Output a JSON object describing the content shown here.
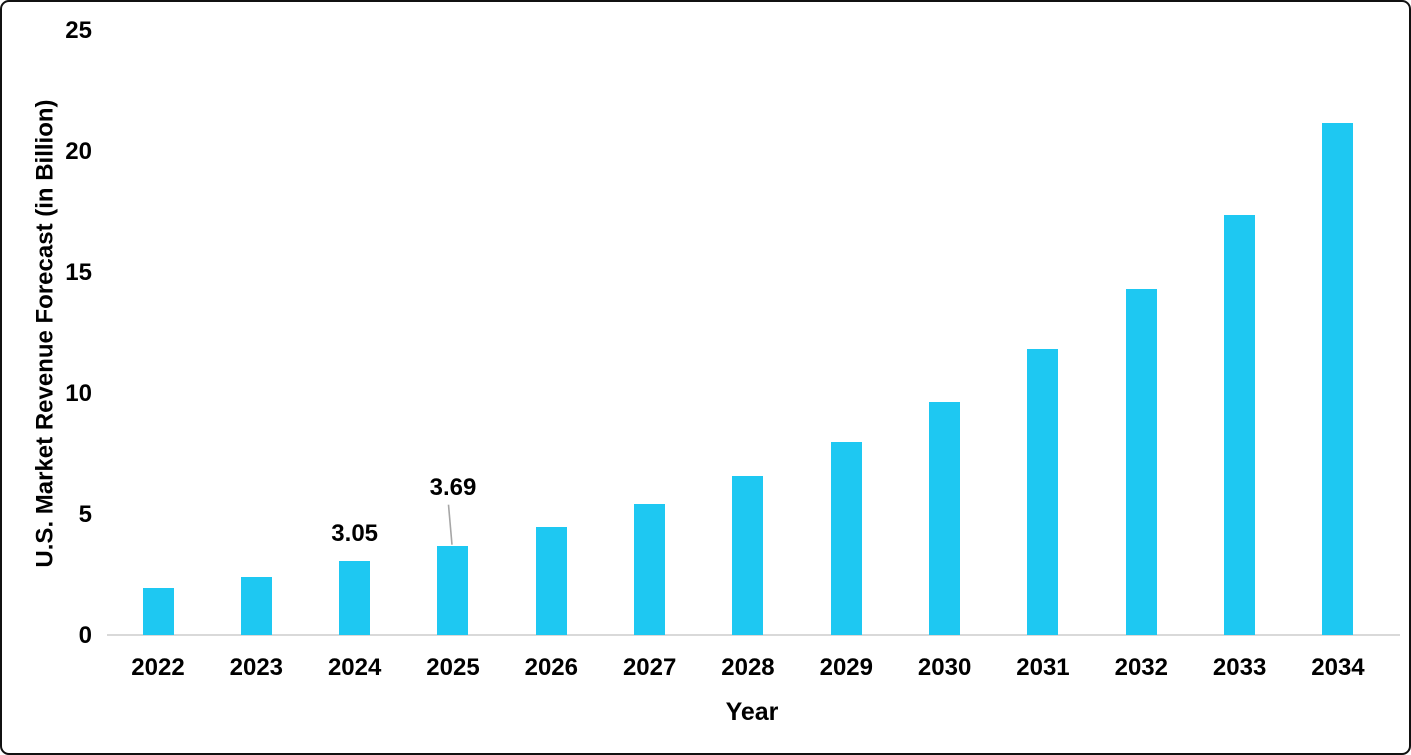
{
  "frame": {
    "background_color": "#ffffff",
    "border_color": "#111111"
  },
  "chart_data": {
    "type": "bar",
    "title": "",
    "xlabel": "Year",
    "ylabel": "U.S. Market Revenue Forecast (in Billion)",
    "categories": [
      "2022",
      "2023",
      "2024",
      "2025",
      "2026",
      "2027",
      "2028",
      "2029",
      "2030",
      "2031",
      "2032",
      "2033",
      "2034"
    ],
    "values": [
      1.93,
      2.41,
      3.05,
      3.69,
      4.46,
      5.41,
      6.57,
      7.99,
      9.64,
      11.8,
      14.3,
      17.35,
      21.15
    ],
    "ylim": [
      0,
      25
    ],
    "yticks": [
      0,
      5,
      10,
      15,
      20,
      25
    ],
    "grid": false,
    "legend": "none",
    "bar_color": "#1ec8f2",
    "axis_line_color": "#d9d9d9",
    "leader_line_color": "#a6a6a6",
    "data_labels": [
      {
        "category": "2024",
        "text": "3.05",
        "leader": false
      },
      {
        "category": "2025",
        "text": "3.69",
        "leader": true
      }
    ]
  }
}
